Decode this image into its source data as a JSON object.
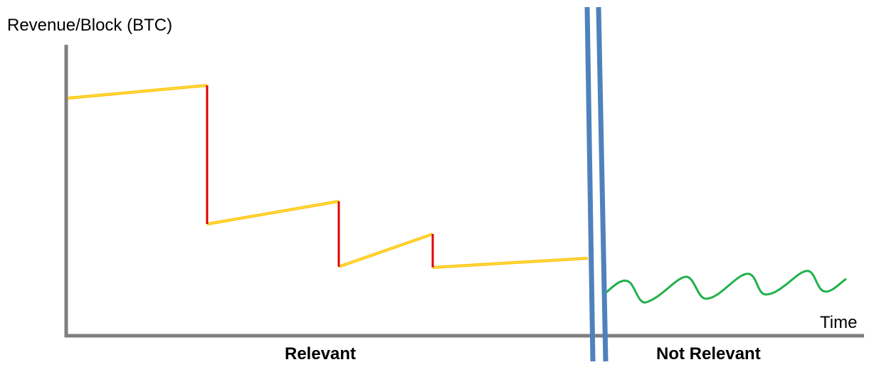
{
  "labels": {
    "y_axis": "Revenue/Block (BTC)",
    "x_axis": "Time",
    "left_region": "Relevant",
    "right_region": "Not Relevant"
  },
  "colors": {
    "axis": "#7f7f7f",
    "revenue_line_outer": "#ffc000",
    "revenue_line_inner": "#ffe45c",
    "halving_drop": "#e00000",
    "break_marker": "#4f81bd",
    "post_break_line": "#22b14c"
  },
  "chart_data": {
    "type": "line",
    "title": "",
    "xlabel": "Time",
    "ylabel": "Revenue/Block (BTC)",
    "regions": [
      "Relevant",
      "Not Relevant"
    ],
    "axis_break": true,
    "ticks": "none",
    "segments_in_relevant_region": [
      "rising",
      "drop",
      "rising",
      "drop",
      "rising",
      "drop",
      "rising"
    ],
    "not_relevant_region_shape": "oscillating"
  }
}
